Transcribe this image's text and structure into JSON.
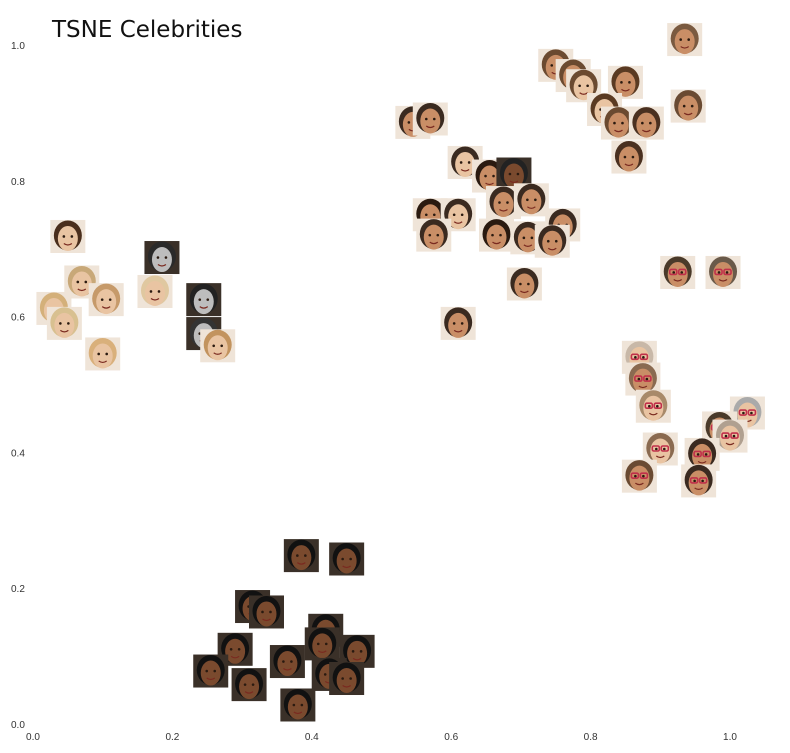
{
  "chart_data": {
    "type": "scatter",
    "title": "TSNE Celebrities",
    "xlabel": "",
    "ylabel": "",
    "xlim": [
      0.0,
      1.08
    ],
    "ylim": [
      0.0,
      1.03
    ],
    "grid": false,
    "legend": "none",
    "x_ticks": [
      "0.0",
      "0.2",
      "0.4",
      "0.6",
      "0.8",
      "1.0"
    ],
    "y_ticks": [
      "0.0",
      "0.2",
      "0.4",
      "0.6",
      "0.8",
      "1.0"
    ],
    "marker": "face-thumbnail",
    "points": [
      {
        "x": 0.05,
        "y": 0.718,
        "tone": "light",
        "hair": "#4a2e1c"
      },
      {
        "x": 0.185,
        "y": 0.687,
        "tone": "gray",
        "hair": "#2a2a2a"
      },
      {
        "x": 0.07,
        "y": 0.651,
        "tone": "light",
        "hair": "#c8a878"
      },
      {
        "x": 0.03,
        "y": 0.612,
        "tone": "light",
        "hair": "#d4b07a"
      },
      {
        "x": 0.105,
        "y": 0.625,
        "tone": "light",
        "hair": "#c69a6a"
      },
      {
        "x": 0.175,
        "y": 0.637,
        "tone": "light",
        "hair": "#e0c8a0"
      },
      {
        "x": 0.245,
        "y": 0.625,
        "tone": "gray",
        "hair": "#222222"
      },
      {
        "x": 0.045,
        "y": 0.59,
        "tone": "light",
        "hair": "#d8c090"
      },
      {
        "x": 0.245,
        "y": 0.575,
        "tone": "gray",
        "hair": "#333333"
      },
      {
        "x": 0.265,
        "y": 0.557,
        "tone": "light",
        "hair": "#c2935e"
      },
      {
        "x": 0.1,
        "y": 0.545,
        "tone": "light",
        "hair": "#d9b07b"
      },
      {
        "x": 0.545,
        "y": 0.886,
        "tone": "medium",
        "hair": "#3a2a20"
      },
      {
        "x": 0.57,
        "y": 0.891,
        "tone": "medium",
        "hair": "#3a2a20"
      },
      {
        "x": 0.75,
        "y": 0.97,
        "tone": "medium",
        "hair": "#6b4a30"
      },
      {
        "x": 0.775,
        "y": 0.955,
        "tone": "medium",
        "hair": "#6b4a30"
      },
      {
        "x": 0.79,
        "y": 0.94,
        "tone": "light",
        "hair": "#6b4a30"
      },
      {
        "x": 0.85,
        "y": 0.945,
        "tone": "medium",
        "hair": "#5a3a22"
      },
      {
        "x": 0.935,
        "y": 1.008,
        "tone": "medium",
        "hair": "#7a5a40"
      },
      {
        "x": 0.94,
        "y": 0.91,
        "tone": "medium",
        "hair": "#6a4a32"
      },
      {
        "x": 0.82,
        "y": 0.905,
        "tone": "light",
        "hair": "#5a3a22"
      },
      {
        "x": 0.84,
        "y": 0.885,
        "tone": "medium",
        "hair": "#6b4a30"
      },
      {
        "x": 0.88,
        "y": 0.885,
        "tone": "medium",
        "hair": "#4a3020"
      },
      {
        "x": 0.855,
        "y": 0.835,
        "tone": "medium",
        "hair": "#4a3020"
      },
      {
        "x": 0.62,
        "y": 0.827,
        "tone": "light",
        "hair": "#3a2a20"
      },
      {
        "x": 0.655,
        "y": 0.807,
        "tone": "medium",
        "hair": "#2a1a10"
      },
      {
        "x": 0.69,
        "y": 0.81,
        "tone": "dark",
        "hair": "#222222"
      },
      {
        "x": 0.675,
        "y": 0.768,
        "tone": "medium",
        "hair": "#3a2a20"
      },
      {
        "x": 0.715,
        "y": 0.772,
        "tone": "medium",
        "hair": "#3a2a20"
      },
      {
        "x": 0.57,
        "y": 0.75,
        "tone": "medium",
        "hair": "#2a1a10"
      },
      {
        "x": 0.61,
        "y": 0.75,
        "tone": "light",
        "hair": "#3a2a20"
      },
      {
        "x": 0.575,
        "y": 0.72,
        "tone": "medium",
        "hair": "#3a2a20"
      },
      {
        "x": 0.76,
        "y": 0.735,
        "tone": "medium",
        "hair": "#3a2a20"
      },
      {
        "x": 0.665,
        "y": 0.72,
        "tone": "medium",
        "hair": "#2a1a10"
      },
      {
        "x": 0.71,
        "y": 0.716,
        "tone": "medium",
        "hair": "#3a2a20"
      },
      {
        "x": 0.745,
        "y": 0.711,
        "tone": "medium",
        "hair": "#3a2a20"
      },
      {
        "x": 0.705,
        "y": 0.648,
        "tone": "medium",
        "hair": "#3a2a20"
      },
      {
        "x": 0.61,
        "y": 0.59,
        "tone": "medium",
        "hair": "#3a2a20"
      },
      {
        "x": 0.925,
        "y": 0.665,
        "tone": "medium",
        "hair": "#4a3a2a",
        "glasses": true
      },
      {
        "x": 0.99,
        "y": 0.665,
        "tone": "medium",
        "hair": "#6a5a4a",
        "glasses": true
      },
      {
        "x": 0.87,
        "y": 0.54,
        "tone": "light",
        "hair": "#c8b8a8",
        "glasses": true
      },
      {
        "x": 0.875,
        "y": 0.508,
        "tone": "medium",
        "hair": "#8a6a50",
        "glasses": true
      },
      {
        "x": 0.89,
        "y": 0.468,
        "tone": "light",
        "hair": "#a88a6a",
        "glasses": true
      },
      {
        "x": 1.025,
        "y": 0.458,
        "tone": "light",
        "hair": "#aaaaaa",
        "glasses": true
      },
      {
        "x": 0.985,
        "y": 0.436,
        "tone": "medium",
        "hair": "#4a3a2a",
        "glasses": true
      },
      {
        "x": 1.0,
        "y": 0.424,
        "tone": "light",
        "hair": "#b0a090",
        "glasses": true
      },
      {
        "x": 0.9,
        "y": 0.405,
        "tone": "light",
        "hair": "#8a6a50",
        "glasses": true
      },
      {
        "x": 0.96,
        "y": 0.397,
        "tone": "medium",
        "hair": "#3a2a20",
        "glasses": true
      },
      {
        "x": 0.87,
        "y": 0.365,
        "tone": "medium",
        "hair": "#6a4a32",
        "glasses": true
      },
      {
        "x": 0.955,
        "y": 0.358,
        "tone": "medium",
        "hair": "#3a2a20",
        "glasses": true
      },
      {
        "x": 0.385,
        "y": 0.248,
        "tone": "dark",
        "hair": "#111111"
      },
      {
        "x": 0.45,
        "y": 0.243,
        "tone": "dark",
        "hair": "#111111"
      },
      {
        "x": 0.315,
        "y": 0.173,
        "tone": "dark",
        "hair": "#111111"
      },
      {
        "x": 0.335,
        "y": 0.165,
        "tone": "dark",
        "hair": "#111111"
      },
      {
        "x": 0.42,
        "y": 0.138,
        "tone": "dark",
        "hair": "#111111"
      },
      {
        "x": 0.29,
        "y": 0.11,
        "tone": "dark",
        "hair": "#111111"
      },
      {
        "x": 0.415,
        "y": 0.118,
        "tone": "dark",
        "hair": "#111111"
      },
      {
        "x": 0.465,
        "y": 0.107,
        "tone": "dark",
        "hair": "#111111"
      },
      {
        "x": 0.255,
        "y": 0.078,
        "tone": "dark",
        "hair": "#111111"
      },
      {
        "x": 0.365,
        "y": 0.092,
        "tone": "dark",
        "hair": "#111111"
      },
      {
        "x": 0.425,
        "y": 0.073,
        "tone": "dark",
        "hair": "#111111"
      },
      {
        "x": 0.31,
        "y": 0.058,
        "tone": "dark",
        "hair": "#111111"
      },
      {
        "x": 0.45,
        "y": 0.067,
        "tone": "dark",
        "hair": "#111111"
      },
      {
        "x": 0.38,
        "y": 0.028,
        "tone": "dark",
        "hair": "#111111"
      }
    ]
  },
  "colors": {
    "background": "#ffffff",
    "skin_light": "#e9c4a2",
    "skin_medium": "#c98e66",
    "skin_dark": "#7a4a2e",
    "skin_gray": "#bdbdbd",
    "thumb_bg_light": "#efe4d8",
    "thumb_bg_dark": "#3a3028",
    "glasses_frame": "#c0304a",
    "tick_text": "#333333",
    "title_text": "#111111"
  }
}
